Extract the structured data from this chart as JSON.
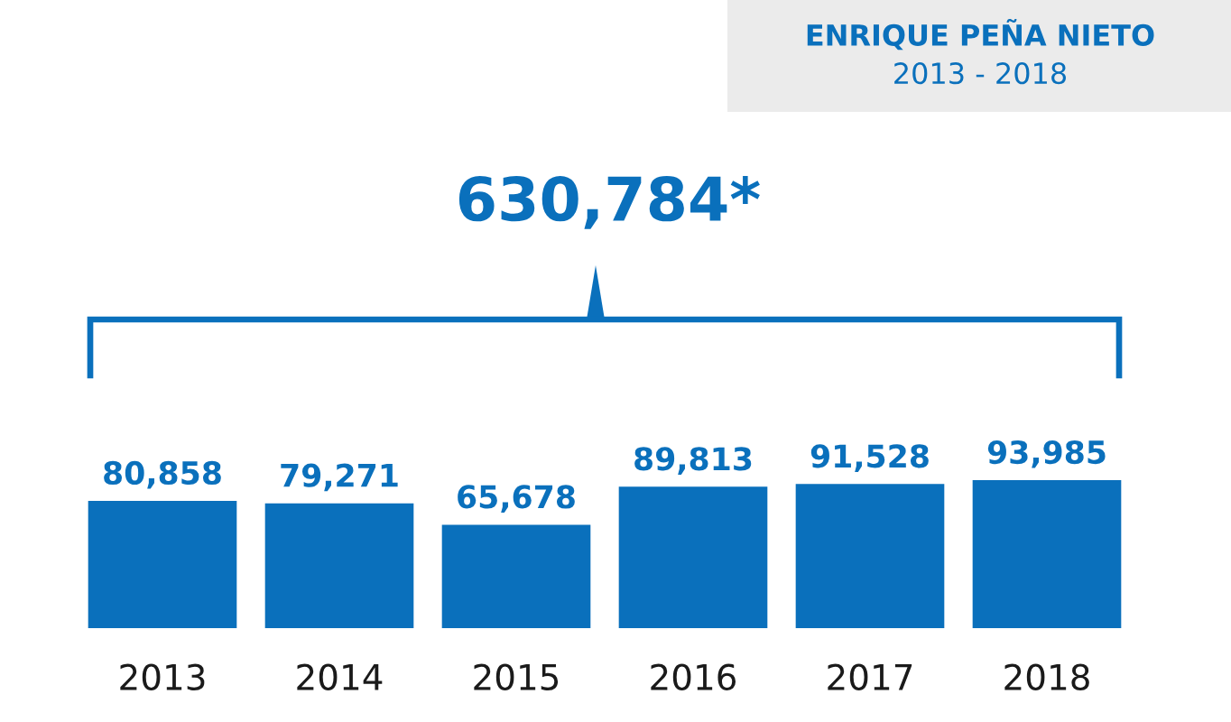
{
  "chart_data": {
    "type": "bar",
    "title": "ENRIQUE PEÑA NIETO",
    "subtitle": "2013 - 2018",
    "categories": [
      "2013",
      "2014",
      "2015",
      "2016",
      "2017",
      "2018"
    ],
    "values": [
      80858,
      79271,
      65678,
      89813,
      91528,
      93985
    ],
    "value_labels": [
      "80,858",
      "79,271",
      "65,678",
      "89,813",
      "91,528",
      "93,985"
    ],
    "color": "#0a70bc",
    "tick_labels": "x",
    "annotations": [
      "630,784*"
    ]
  }
}
